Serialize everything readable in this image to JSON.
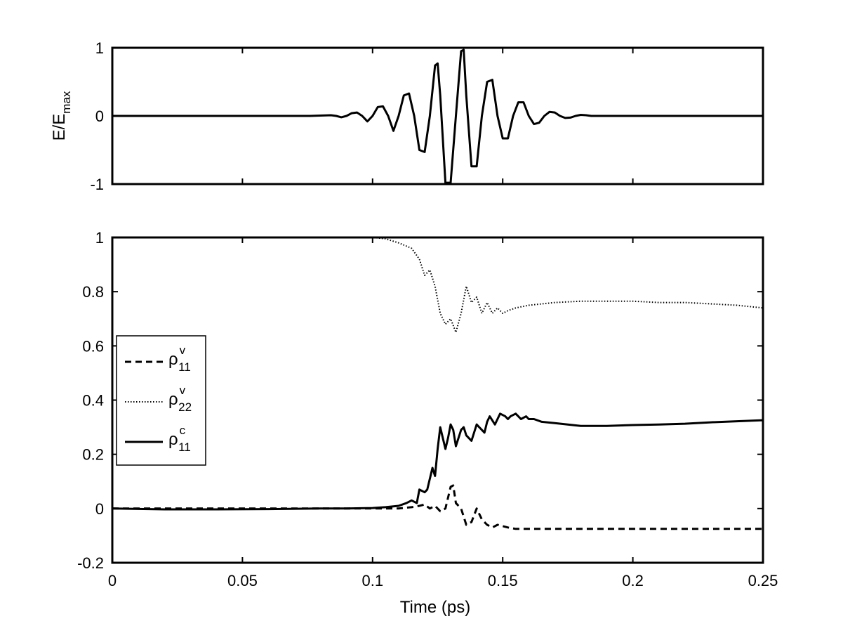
{
  "chart_data": [
    {
      "type": "line",
      "panel": "top",
      "ylabel": "E/E",
      "ylabel_sub": "max",
      "xlim": [
        0,
        0.25
      ],
      "ylim": [
        -1,
        1
      ],
      "xticks": [
        0,
        0.05,
        0.1,
        0.15,
        0.2,
        0.25
      ],
      "yticks": [
        {
          "value": -1,
          "label": "-1"
        },
        {
          "value": 0,
          "label": "0"
        },
        {
          "value": 1,
          "label": "1"
        }
      ],
      "show_xtick_labels": false,
      "grid": false,
      "series": [
        {
          "style": "solid",
          "x": [
            0,
            0.004,
            0.008,
            0.012,
            0.016,
            0.02,
            0.024,
            0.028,
            0.032,
            0.036,
            0.04,
            0.044,
            0.048,
            0.052,
            0.056,
            0.06,
            0.064,
            0.068,
            0.072,
            0.076,
            0.08,
            0.084,
            0.086,
            0.088,
            0.09,
            0.092,
            0.094,
            0.096,
            0.098,
            0.1,
            0.102,
            0.104,
            0.106,
            0.108,
            0.11,
            0.112,
            0.114,
            0.116,
            0.118,
            0.12,
            0.122,
            0.124,
            0.125,
            0.126,
            0.128,
            0.13,
            0.132,
            0.134,
            0.135,
            0.136,
            0.138,
            0.14,
            0.142,
            0.144,
            0.146,
            0.148,
            0.15,
            0.152,
            0.154,
            0.156,
            0.158,
            0.16,
            0.162,
            0.164,
            0.166,
            0.168,
            0.17,
            0.172,
            0.174,
            0.176,
            0.178,
            0.18,
            0.182,
            0.184,
            0.188,
            0.192,
            0.196,
            0.2,
            0.21,
            0.22,
            0.23,
            0.24,
            0.25
          ],
          "y": [
            0,
            0,
            0,
            0,
            0,
            0,
            0,
            0,
            0,
            0,
            0,
            0,
            0,
            0,
            0,
            0,
            0,
            0,
            0,
            0,
            0.005,
            0.01,
            0.0,
            -0.02,
            0.0,
            0.04,
            0.05,
            0.0,
            -0.08,
            0.0,
            0.13,
            0.14,
            0.0,
            -0.22,
            0.0,
            0.3,
            0.33,
            0.0,
            -0.5,
            -0.53,
            0.0,
            0.74,
            0.77,
            0.3,
            -0.98,
            -0.98,
            0.0,
            0.95,
            0.97,
            0.3,
            -0.74,
            -0.74,
            0.0,
            0.5,
            0.53,
            0.0,
            -0.33,
            -0.33,
            0.0,
            0.2,
            0.2,
            0.0,
            -0.12,
            -0.1,
            0.0,
            0.06,
            0.05,
            0.0,
            -0.03,
            -0.025,
            0.0,
            0.015,
            0.01,
            0.0,
            0.0,
            0,
            0,
            0,
            0,
            0,
            0,
            0,
            0
          ]
        }
      ]
    },
    {
      "type": "line",
      "panel": "bottom",
      "xlabel": "Time (ps)",
      "xlim": [
        0,
        0.25
      ],
      "ylim": [
        -0.2,
        1
      ],
      "xticks": [
        {
          "value": 0,
          "label": "0"
        },
        {
          "value": 0.05,
          "label": "0.05"
        },
        {
          "value": 0.1,
          "label": "0.1"
        },
        {
          "value": 0.15,
          "label": "0.15"
        },
        {
          "value": 0.2,
          "label": "0.2"
        },
        {
          "value": 0.25,
          "label": "0.25"
        }
      ],
      "yticks": [
        {
          "value": -0.2,
          "label": "-0.2"
        },
        {
          "value": 0,
          "label": "0"
        },
        {
          "value": 0.2,
          "label": "0.2"
        },
        {
          "value": 0.4,
          "label": "0.4"
        },
        {
          "value": 0.6,
          "label": "0.6"
        },
        {
          "value": 0.8,
          "label": "0.8"
        },
        {
          "value": 1,
          "label": "1"
        }
      ],
      "grid": false,
      "legend_position": "left",
      "series": [
        {
          "name": "ρ",
          "sup": "v",
          "sub": "11",
          "style": "dashed",
          "x": [
            0,
            0.05,
            0.1,
            0.11,
            0.115,
            0.118,
            0.12,
            0.122,
            0.124,
            0.126,
            0.128,
            0.13,
            0.131,
            0.132,
            0.134,
            0.136,
            0.138,
            0.14,
            0.142,
            0.144,
            0.146,
            0.148,
            0.15,
            0.152,
            0.155,
            0.16,
            0.2,
            0.25
          ],
          "y": [
            0,
            0,
            0,
            0,
            0.005,
            0.01,
            0.015,
            0.0,
            0.01,
            -0.01,
            0.0,
            0.08,
            0.085,
            0.02,
            0.0,
            -0.06,
            -0.05,
            0.0,
            -0.04,
            -0.06,
            -0.07,
            -0.06,
            -0.065,
            -0.07,
            -0.075,
            -0.075,
            -0.075,
            -0.075
          ]
        },
        {
          "name": "ρ",
          "sup": "v",
          "sub": "22",
          "style": "dotted",
          "x": [
            0,
            0.05,
            0.1,
            0.105,
            0.11,
            0.115,
            0.118,
            0.12,
            0.122,
            0.124,
            0.126,
            0.128,
            0.13,
            0.132,
            0.134,
            0.136,
            0.138,
            0.14,
            0.142,
            0.144,
            0.146,
            0.148,
            0.15,
            0.152,
            0.155,
            0.16,
            0.17,
            0.18,
            0.19,
            0.2,
            0.21,
            0.22,
            0.23,
            0.24,
            0.25
          ],
          "y": [
            1,
            1,
            1,
            0.995,
            0.98,
            0.96,
            0.92,
            0.86,
            0.88,
            0.82,
            0.72,
            0.68,
            0.7,
            0.65,
            0.72,
            0.82,
            0.76,
            0.78,
            0.72,
            0.76,
            0.72,
            0.74,
            0.72,
            0.73,
            0.74,
            0.75,
            0.76,
            0.765,
            0.765,
            0.765,
            0.76,
            0.76,
            0.755,
            0.75,
            0.74
          ]
        },
        {
          "name": "ρ",
          "sup": "c",
          "sub": "11",
          "style": "solid",
          "x": [
            0,
            0.02,
            0.04,
            0.06,
            0.08,
            0.09,
            0.1,
            0.105,
            0.11,
            0.113,
            0.115,
            0.117,
            0.118,
            0.12,
            0.121,
            0.123,
            0.124,
            0.125,
            0.126,
            0.128,
            0.129,
            0.13,
            0.131,
            0.132,
            0.134,
            0.135,
            0.136,
            0.138,
            0.139,
            0.14,
            0.141,
            0.143,
            0.144,
            0.145,
            0.147,
            0.148,
            0.149,
            0.151,
            0.152,
            0.153,
            0.155,
            0.156,
            0.157,
            0.159,
            0.16,
            0.162,
            0.165,
            0.17,
            0.175,
            0.18,
            0.185,
            0.19,
            0.2,
            0.21,
            0.22,
            0.23,
            0.24,
            0.25
          ],
          "y": [
            0,
            -0.003,
            -0.003,
            -0.002,
            0,
            0.0,
            0.002,
            0.005,
            0.01,
            0.02,
            0.03,
            0.02,
            0.07,
            0.06,
            0.07,
            0.15,
            0.12,
            0.22,
            0.3,
            0.22,
            0.26,
            0.31,
            0.29,
            0.23,
            0.29,
            0.3,
            0.27,
            0.25,
            0.28,
            0.31,
            0.3,
            0.28,
            0.32,
            0.34,
            0.31,
            0.33,
            0.35,
            0.34,
            0.33,
            0.34,
            0.35,
            0.34,
            0.33,
            0.34,
            0.33,
            0.33,
            0.32,
            0.315,
            0.31,
            0.305,
            0.305,
            0.305,
            0.308,
            0.31,
            0.313,
            0.318,
            0.322,
            0.326
          ]
        }
      ]
    }
  ]
}
